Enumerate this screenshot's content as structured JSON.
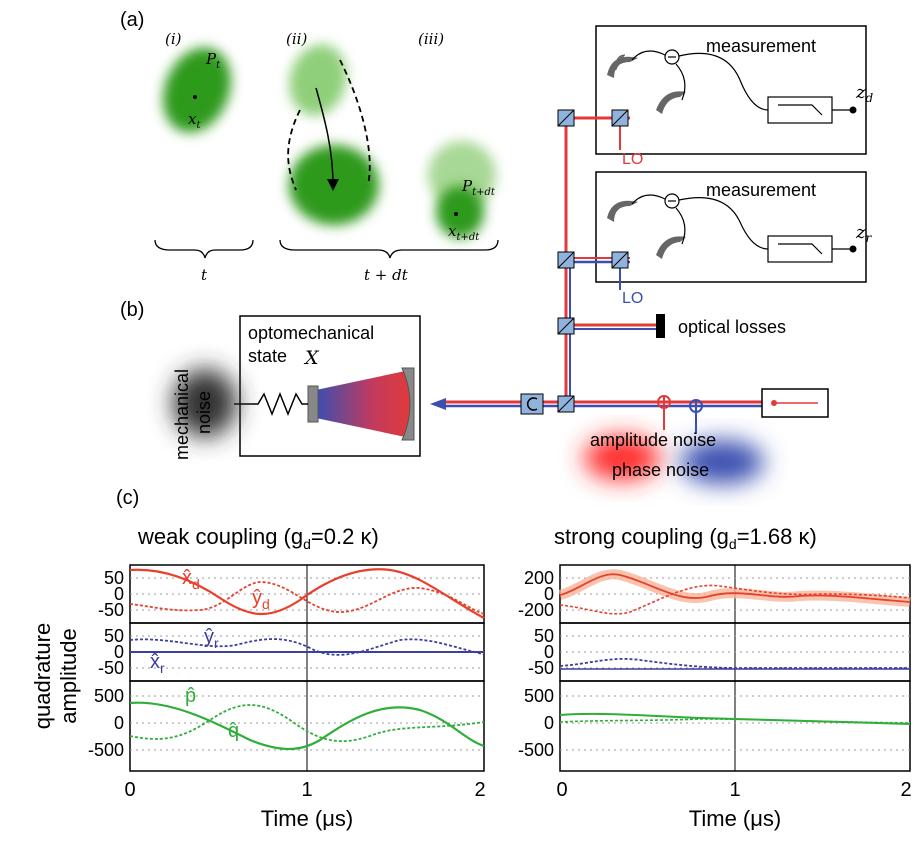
{
  "panel_a": {
    "label": "(a)",
    "states": [
      "(i)",
      "(ii)",
      "(iii)"
    ],
    "p_t": "P",
    "p_t_sub": "t",
    "x_t": "x",
    "x_t_sub": "t",
    "p_tdt": "P",
    "p_tdt_sub": "t+dt",
    "x_tdt": "x",
    "x_tdt_sub": "t+dt",
    "brace_t": "t",
    "brace_tdt": "t + dt"
  },
  "panel_b": {
    "label": "(b)",
    "measurement_label": "measurement",
    "lo_label": "LO",
    "output_d": "z",
    "output_d_sub": "d",
    "output_r": "z",
    "output_r_sub": "r",
    "optical_losses": "optical losses",
    "optomech_title_1": "optomechanical",
    "optomech_title_2": "state",
    "optomech_symbol": "X",
    "mechanical_noise_1": "mechanical",
    "mechanical_noise_2": "noise",
    "amplitude_noise": "amplitude noise",
    "phase_noise": "phase noise",
    "colors": {
      "red_beam": "#e03a3a",
      "blue_beam": "#3a4fb0",
      "splitter": "#8fb3dc"
    }
  },
  "panel_c": {
    "label": "(c)",
    "y_axis_label_1": "quadrature",
    "y_axis_label_2": "amplitude",
    "x_axis_label": "Time (μs)",
    "x_ticks": [
      "0",
      "1",
      "2"
    ],
    "weak_title": "weak coupling (g",
    "weak_title_sub": "d",
    "weak_title_end": "=0.2 κ)",
    "strong_title": "strong coupling (g",
    "strong_title_sub": "d",
    "strong_title_end": "=1.68 κ)",
    "trace_labels": {
      "xd": "x̂",
      "xd_sub": "d",
      "yd": "ŷ",
      "yd_sub": "d",
      "yr": "ŷ",
      "yr_sub": "r",
      "xr": "x̂",
      "xr_sub": "r",
      "p": "p̂",
      "q": "q̂"
    },
    "left_ticks": {
      "top": [
        "50",
        "0",
        "-50"
      ],
      "mid": [
        "50",
        "0",
        "-50"
      ],
      "bot": [
        "500",
        "0",
        "-500"
      ]
    },
    "right_ticks": {
      "top": [
        "200",
        "0",
        "-200"
      ],
      "mid": [
        "50",
        "0",
        "-50"
      ],
      "bot": [
        "500",
        "0",
        "-500"
      ]
    },
    "colors": {
      "red": "#e8402c",
      "blue": "#3b3fa0",
      "green": "#2fae3a",
      "orange_band": "#f7b49a"
    }
  }
}
